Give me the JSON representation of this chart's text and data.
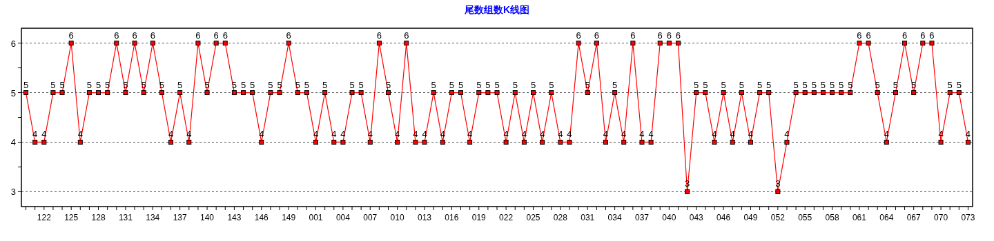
{
  "chart_data": {
    "type": "line",
    "title": "尾数组数K线图",
    "categories": [
      null,
      null,
      "122",
      null,
      null,
      "125",
      null,
      null,
      "128",
      null,
      null,
      "131",
      null,
      null,
      "134",
      null,
      null,
      "137",
      null,
      null,
      "140",
      null,
      null,
      "143",
      null,
      null,
      "146",
      null,
      null,
      "149",
      null,
      null,
      "001",
      null,
      null,
      "004",
      null,
      null,
      "007",
      null,
      null,
      "010",
      null,
      null,
      "013",
      null,
      null,
      "016",
      null,
      null,
      "019",
      null,
      null,
      "022",
      null,
      null,
      "025",
      null,
      null,
      "028",
      null,
      null,
      "031",
      null,
      null,
      "034",
      null,
      null,
      "037",
      null,
      null,
      "040",
      null,
      null,
      "043",
      null,
      null,
      "046",
      null,
      null,
      "049",
      null,
      null,
      "052",
      null,
      null,
      "055",
      null,
      null,
      "058",
      null,
      null,
      "061",
      null,
      null,
      "064",
      null,
      null,
      "067",
      null,
      null,
      "070",
      null,
      null,
      "073"
    ],
    "series": [
      {
        "color": "#ff0000",
        "values": [
          5,
          4,
          4,
          5,
          5,
          6,
          4,
          5,
          5,
          5,
          6,
          5,
          6,
          5,
          6,
          5,
          4,
          5,
          4,
          6,
          5,
          6,
          6,
          5,
          5,
          5,
          4,
          5,
          5,
          6,
          5,
          5,
          4,
          5,
          4,
          4,
          5,
          5,
          4,
          6,
          5,
          4,
          6,
          4,
          4,
          5,
          4,
          5,
          5,
          4,
          5,
          5,
          5,
          4,
          5,
          4,
          5,
          4,
          5,
          4,
          4,
          6,
          5,
          6,
          4,
          5,
          4,
          6,
          4,
          4,
          6,
          6,
          6,
          3,
          5,
          5,
          4,
          5,
          4,
          5,
          4,
          5,
          5,
          3,
          4,
          5,
          5,
          5,
          5,
          5,
          5,
          5,
          6,
          6,
          5,
          4,
          5,
          6,
          5,
          6,
          6,
          4,
          5,
          5,
          4
        ]
      }
    ],
    "ylim": [
      2.7,
      6.3
    ],
    "yticks": [
      3,
      {
        "value": 3.5,
        "label": null
      },
      4,
      {
        "value": 4.5,
        "label": null
      },
      5,
      {
        "value": 5.5,
        "label": null
      },
      6
    ],
    "grid": "y",
    "marker": "square",
    "line_style": "solid",
    "data_labels": true
  }
}
